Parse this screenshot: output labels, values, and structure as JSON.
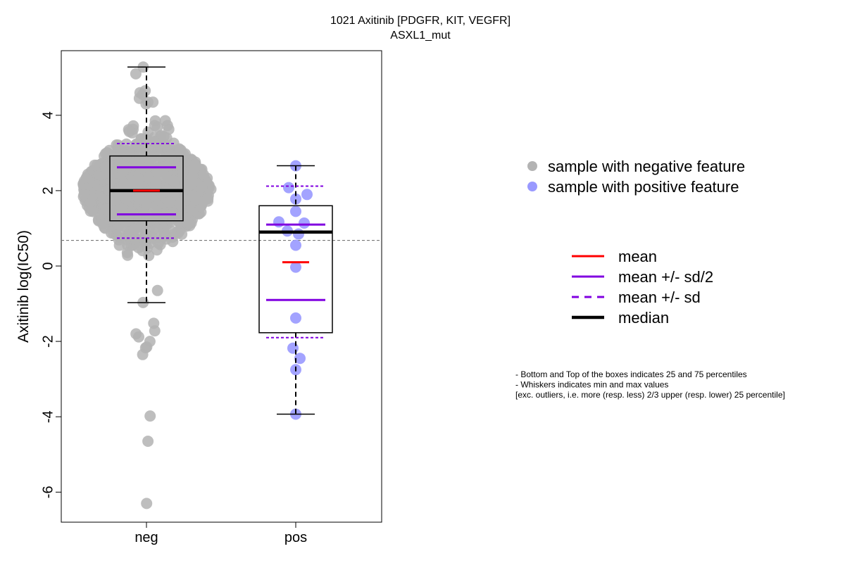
{
  "chart_data": {
    "type": "box",
    "title": "1021 Axitinib [PDGFR, KIT, VEGFR]",
    "subtitle": "ASXL1_mut",
    "ylabel": "Axitinib log(IC50)",
    "xlabel": "",
    "categories": [
      "neg",
      "pos"
    ],
    "ylim": [
      -6.8,
      5.6
    ],
    "yticks": [
      4,
      2,
      0,
      -2,
      -4,
      -6
    ],
    "yticks_labels": [
      "4",
      "2",
      "0",
      "-2",
      "-4",
      "-6"
    ],
    "reference_line": 0.68,
    "groups": [
      {
        "name": "neg",
        "color": "#b3b3b3",
        "q1": 1.2,
        "median": 2.0,
        "q3": 2.92,
        "whisker_low": -0.97,
        "whisker_high": 5.28,
        "mean": 2.0,
        "mean_minus_half_sd": 1.37,
        "mean_plus_half_sd": 2.62,
        "mean_minus_sd": 0.74,
        "mean_plus_sd": 3.25,
        "n_points_approx": 900
      },
      {
        "name": "pos",
        "color": "#9999ff",
        "q1": -1.77,
        "median": 0.9,
        "q3": 1.6,
        "whisker_low": -3.93,
        "whisker_high": 2.66,
        "mean": 0.1,
        "mean_minus_half_sd": -0.9,
        "mean_plus_half_sd": 1.1,
        "mean_minus_sd": -1.9,
        "mean_plus_sd": 2.12,
        "points": [
          2.66,
          2.08,
          1.9,
          1.78,
          1.45,
          1.17,
          1.14,
          0.93,
          0.85,
          0.55,
          -0.03,
          -1.38,
          -2.18,
          -2.45,
          -2.75,
          -3.93
        ]
      }
    ],
    "legend_points": [
      {
        "label": "sample with negative feature",
        "color": "#b3b3b3"
      },
      {
        "label": "sample with positive feature",
        "color": "#9999ff"
      }
    ],
    "legend_lines": [
      {
        "label": "mean",
        "color": "#ff0000",
        "style": "solid"
      },
      {
        "label": "mean +/- sd/2",
        "color": "#8000e0",
        "style": "solid"
      },
      {
        "label": "mean +/- sd",
        "color": "#8000e0",
        "style": "dashed"
      },
      {
        "label": "median",
        "color": "#000000",
        "style": "thick"
      }
    ],
    "notes": [
      "- Bottom and Top of the boxes indicates 25 and 75 percentiles",
      "- Whiskers indicates min and max values",
      "[exc. outliers, i.e. more (resp. less) 2/3 upper (resp. lower) 25 percentile]"
    ]
  }
}
